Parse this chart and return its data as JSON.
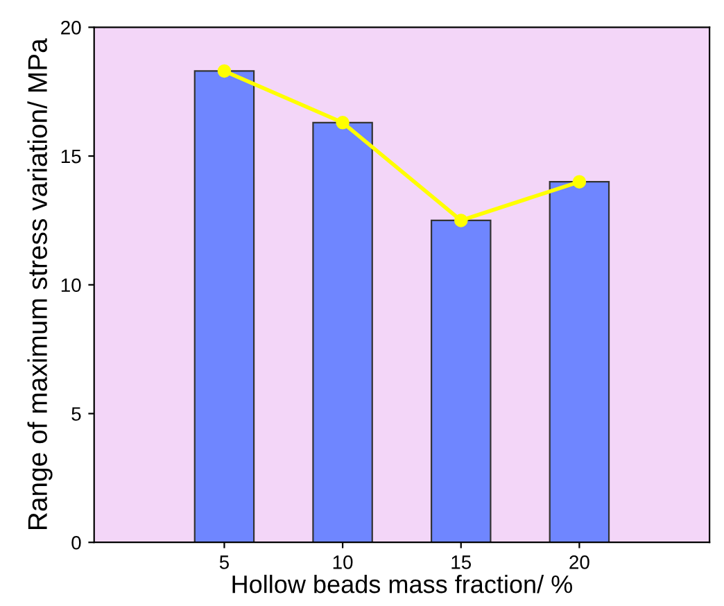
{
  "chart_data": {
    "type": "bar",
    "xlabel": "Hollow beads mass fraction/ %",
    "ylabel": "Range of maximum stress variation/ MPa",
    "categories": [
      "5",
      "10",
      "15",
      "20"
    ],
    "series": [
      {
        "color": "#6f86ff",
        "values": [
          18.3,
          16.3,
          12.5,
          14.0
        ]
      },
      {
        "type": "line",
        "color": "#ffff00",
        "marker": "circle",
        "values": [
          18.3,
          16.3,
          12.5,
          14.0
        ]
      }
    ],
    "ylim": [
      0,
      20
    ],
    "yticks": [
      0,
      5,
      10,
      15,
      20
    ],
    "grid": false,
    "legend": false
  }
}
